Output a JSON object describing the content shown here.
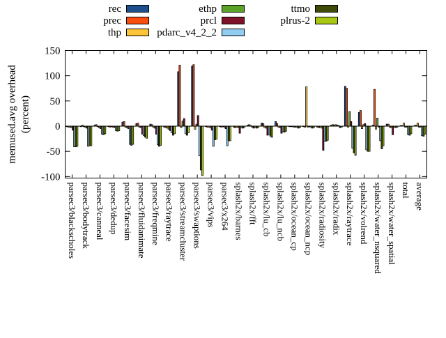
{
  "y_axis": {
    "title_line1": "memused.avg overhead",
    "title_line2": "(percent)",
    "ticks": [
      150,
      100,
      50,
      0,
      -50,
      -100
    ],
    "max": 150,
    "min": -103
  },
  "chart_data": {
    "type": "bar",
    "title": "",
    "xlabel": "",
    "ylabel": "memused.avg overhead (percent)",
    "ylim": [
      -103,
      150
    ],
    "grid": false,
    "legend_position": "top-center, 3 columns, swatch right of label",
    "categories": [
      "parsec3/blackscholes",
      "parsec3/bodytrack",
      "parsec3/canneal",
      "parsec3/dedup",
      "parsec3/facesim",
      "parsec3/fluidanimate",
      "parsec3/freqmine",
      "parsec3/raytrace",
      "parsec3/streamcluster",
      "parsec3/swaptions",
      "parsec3/vips",
      "parsec3/x264",
      "splash2x/barnes",
      "splash2x/fft",
      "splash2x/lu_cb",
      "splash2x/lu_ncb",
      "splash2x/ocean_cp",
      "splash2x/ocean_ncp",
      "splash2x/radiosity",
      "splash2x/radix",
      "splash2x/raytrace",
      "splash2x/volrend",
      "splash2x/water_nsquared",
      "splash2x/water_spatial",
      "total",
      "average"
    ],
    "series": [
      {
        "name": "rec",
        "color": "#1c4f8c",
        "values": [
          -1,
          -1,
          2,
          -1,
          8,
          5,
          4,
          -2,
          108,
          119,
          -1,
          -1,
          -2,
          2,
          6,
          9,
          -1,
          -1,
          -2,
          2,
          79,
          27,
          2,
          4,
          1,
          1
        ]
      },
      {
        "name": "prec",
        "color": "#f94d10",
        "values": [
          -2,
          2,
          3,
          -2,
          9,
          6,
          3,
          -3,
          121,
          122,
          -2,
          -2,
          -3,
          3,
          5,
          5,
          -1,
          -2,
          -3,
          3,
          75,
          31,
          73,
          4,
          1,
          2
        ]
      },
      {
        "name": "thp",
        "color": "#fcc438",
        "values": [
          -2,
          -1,
          -1,
          -1,
          -2,
          -2,
          -2,
          -4,
          -3,
          -6,
          -2,
          -1,
          -2,
          1,
          -3,
          -2,
          -1,
          78,
          -2,
          2,
          -2,
          -5,
          -6,
          -2,
          6,
          6
        ]
      },
      {
        "name": "ethp",
        "color": "#5ba328",
        "values": [
          -3,
          -2,
          -3,
          -2,
          -3,
          -3,
          -4,
          -6,
          10,
          4,
          -3,
          -2,
          -3,
          -2,
          -4,
          -3,
          -2,
          -2,
          -4,
          3,
          29,
          3,
          16,
          -3,
          -2,
          -2
        ]
      },
      {
        "name": "prcl",
        "color": "#7d1228",
        "values": [
          -8,
          -4,
          -5,
          -3,
          -5,
          -16,
          -16,
          -9,
          15,
          21,
          -8,
          -5,
          -14,
          -4,
          -18,
          -14,
          -2,
          -1,
          -48,
          2,
          9,
          5,
          -2,
          -17,
          -2,
          -2
        ]
      },
      {
        "name": "pdarc_v4_2_2",
        "color": "#90cdf0",
        "values": [
          -41,
          -40,
          -16,
          -9,
          -36,
          -19,
          -37,
          -13,
          -15,
          -59,
          -40,
          -39,
          -3,
          -2,
          -16,
          -11,
          -2,
          -2,
          -30,
          1,
          -44,
          -47,
          -29,
          -2,
          -17,
          -19
        ]
      },
      {
        "name": "ttmo",
        "color": "#3e4a08",
        "values": [
          -41,
          -39,
          -17,
          -10,
          -38,
          -22,
          -40,
          -18,
          -18,
          -87,
          -27,
          -29,
          -4,
          -4,
          -20,
          -12,
          -4,
          -4,
          -30,
          -3,
          -53,
          -50,
          -45,
          -3,
          -18,
          -20
        ]
      },
      {
        "name": "plrus-2",
        "color": "#a8c614",
        "values": [
          -40,
          -39,
          -15,
          -9,
          -36,
          -24,
          -38,
          -15,
          -13,
          -98,
          -26,
          -29,
          -3,
          -3,
          -22,
          -10,
          -3,
          -3,
          -28,
          -2,
          -58,
          -50,
          -39,
          -2,
          -15,
          -16
        ]
      }
    ]
  }
}
